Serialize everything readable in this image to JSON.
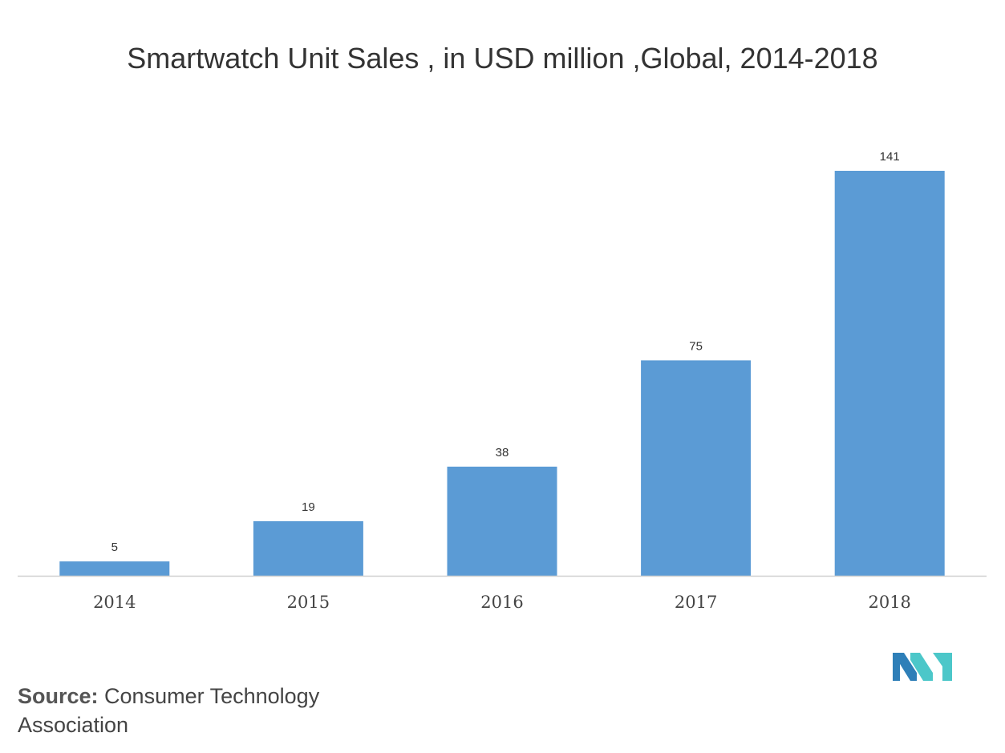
{
  "title": "Smartwatch Unit Sales , in USD million ,Global, 2014-2018",
  "source": {
    "label": "Source:",
    "text": "Consumer Technology Association"
  },
  "colors": {
    "bar": "#5b9bd5",
    "axis": "#d0d0d0",
    "logo_dark": "#2e7fb8",
    "logo_light": "#4cc7c9"
  },
  "logo": {
    "icon": "company-logo-icon"
  },
  "chart_data": {
    "type": "bar",
    "title": "Smartwatch Unit Sales , in USD million ,Global, 2014-2018",
    "categories": [
      "2014",
      "2015",
      "2016",
      "2017",
      "2018"
    ],
    "values": [
      5,
      19,
      38,
      75,
      141
    ],
    "data_labels": [
      "5",
      "19",
      "38",
      "75",
      "141"
    ],
    "xlabel": "",
    "ylabel": "",
    "ylim": [
      0,
      141
    ],
    "grid": false,
    "legend": "none"
  }
}
